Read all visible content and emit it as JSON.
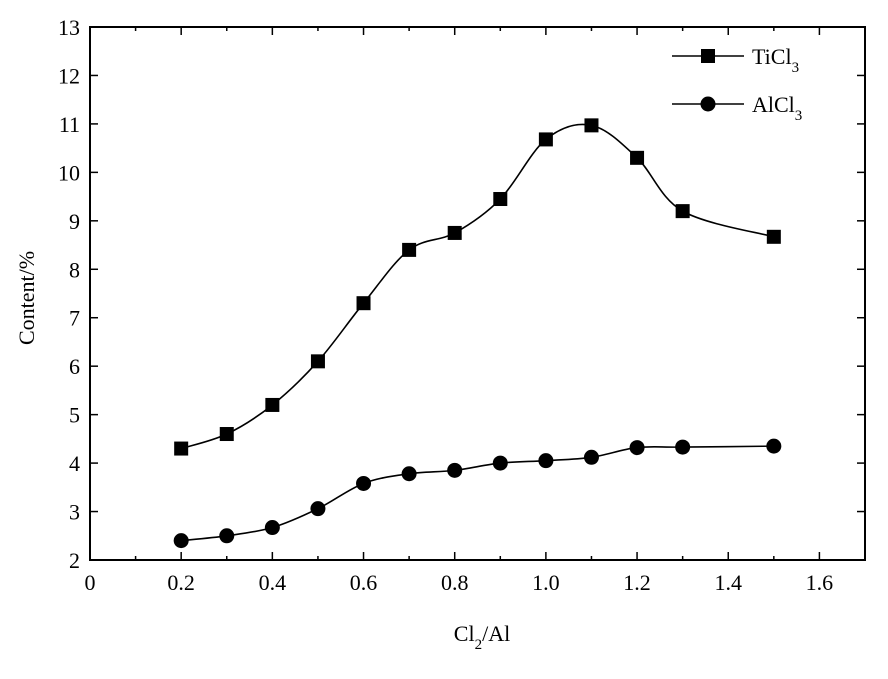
{
  "chart_data": {
    "type": "line",
    "title": "",
    "xlabel": "Cl",
    "xlabel_sub": "2",
    "xlabel_suffix": "/Al",
    "ylabel": "Content/%",
    "xlim": [
      0,
      1.7
    ],
    "ylim": [
      2,
      13
    ],
    "x_ticks": [
      0,
      0.2,
      0.4,
      0.6,
      0.8,
      1.0,
      1.2,
      1.4,
      1.6
    ],
    "x_tick_labels": [
      "0",
      "0.2",
      "0.4",
      "0.6",
      "0.8",
      "1.0",
      "1.2",
      "1.4",
      "1.6"
    ],
    "y_ticks": [
      2,
      3,
      4,
      5,
      6,
      7,
      8,
      9,
      10,
      11,
      12,
      13
    ],
    "y_tick_labels": [
      "2",
      "3",
      "4",
      "5",
      "6",
      "7",
      "8",
      "9",
      "10",
      "11",
      "12",
      "13"
    ],
    "grid": false,
    "legend_position": "top-right",
    "x": [
      0.2,
      0.3,
      0.4,
      0.5,
      0.6,
      0.7,
      0.8,
      0.9,
      1.0,
      1.1,
      1.2,
      1.3,
      1.5
    ],
    "series": [
      {
        "name": "TiCl",
        "name_sub": "3",
        "marker": "square",
        "values": [
          4.3,
          4.6,
          5.2,
          6.1,
          7.3,
          8.4,
          8.75,
          9.45,
          10.68,
          10.97,
          10.3,
          9.2,
          8.67
        ]
      },
      {
        "name": "AlCl",
        "name_sub": "3",
        "marker": "circle",
        "values": [
          2.4,
          2.5,
          2.67,
          3.06,
          3.58,
          3.78,
          3.85,
          4.0,
          4.05,
          4.12,
          4.32,
          4.33,
          4.35
        ]
      }
    ]
  }
}
